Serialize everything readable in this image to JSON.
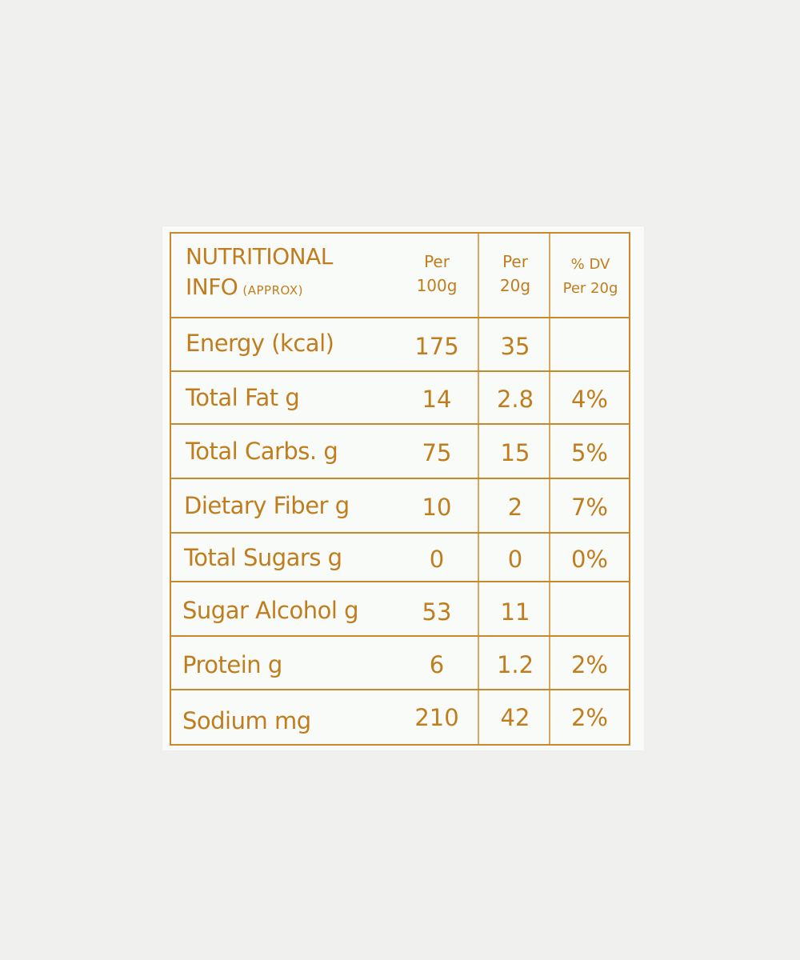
{
  "header": {
    "title_line1": "NUTRITIONAL",
    "title_line2": "INFO",
    "title_sub": "(APPROX)",
    "col1": [
      "Per",
      "100g"
    ],
    "col2": [
      "Per",
      "20g"
    ],
    "col3": [
      "% DV",
      "Per 20g"
    ]
  },
  "rows": [
    {
      "label": "Energy (kcal)",
      "per100": "175",
      "per20": "35",
      "dv": ""
    },
    {
      "label": "Total Fat g",
      "per100": "14",
      "per20": "2.8",
      "dv": "4%"
    },
    {
      "label": "Total Carbs. g",
      "per100": "75",
      "per20": "15",
      "dv": "5%"
    },
    {
      "label": "Dietary Fiber g",
      "per100": "10",
      "per20": "2",
      "dv": "7%"
    },
    {
      "label": "Total Sugars g",
      "per100": "0",
      "per20": "0",
      "dv": "0%"
    },
    {
      "label": "Sugar Alcohol g",
      "per100": "53",
      "per20": "11",
      "dv": ""
    },
    {
      "label": "Protein g",
      "per100": "6",
      "per20": "1.2",
      "dv": "2%"
    },
    {
      "label": "Sodium mg",
      "per100": "210",
      "per20": "42",
      "dv": "2%"
    }
  ],
  "colors": {
    "ink": "#c07d1e",
    "rule": "#c9882a",
    "paper": "#f9fbf8",
    "background": "#f0f0ef"
  }
}
